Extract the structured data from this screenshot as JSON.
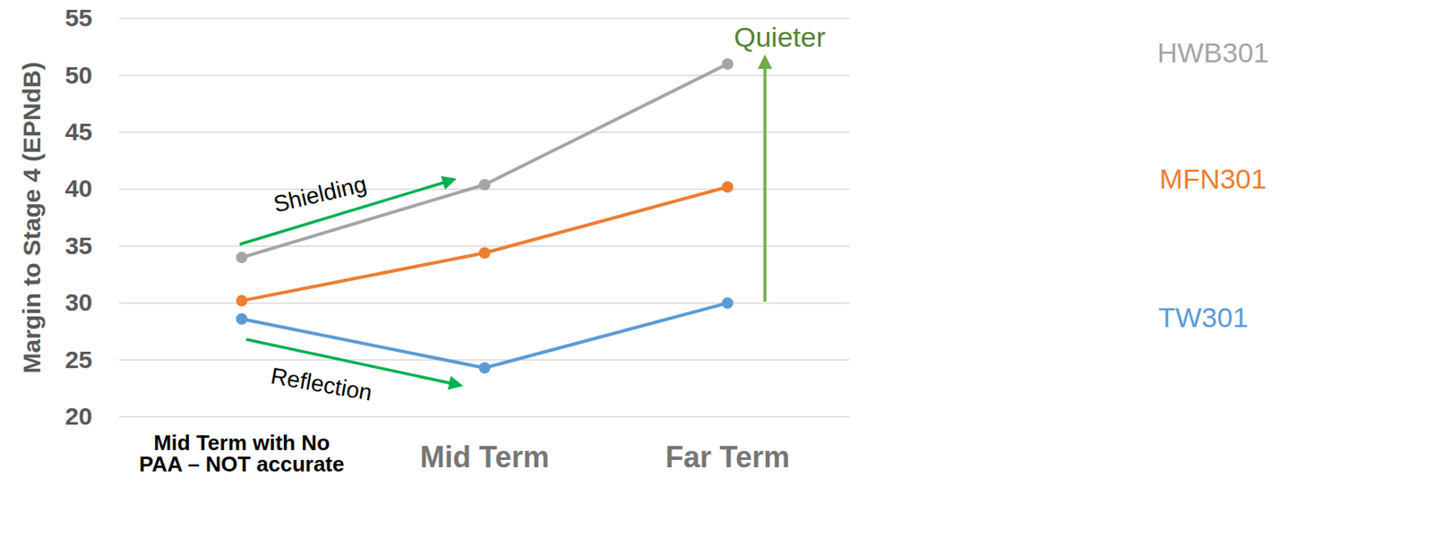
{
  "chart_data": {
    "type": "line",
    "y_label": "Margin to Stage 4 (EPNdB)",
    "categories": [
      "Mid Term with No PAA – NOT accurate",
      "Mid Term",
      "Far Term"
    ],
    "series": [
      {
        "name": "HWB301",
        "color": "#a5a5a5",
        "values": [
          34,
          40.4,
          51
        ]
      },
      {
        "name": "MFN301",
        "color": "#ed7d31",
        "values": [
          30.2,
          34.4,
          40.2
        ]
      },
      {
        "name": "TW301",
        "color": "#5b9bd5",
        "values": [
          28.6,
          24.3,
          30
        ]
      }
    ],
    "ylim": [
      20,
      55
    ],
    "yticks": [
      20,
      25,
      30,
      35,
      40,
      45,
      50,
      55
    ],
    "grid": true,
    "marker": "circle",
    "legend": "right",
    "annotations": [
      "Shielding",
      "Reflection",
      "Quieter"
    ]
  }
}
